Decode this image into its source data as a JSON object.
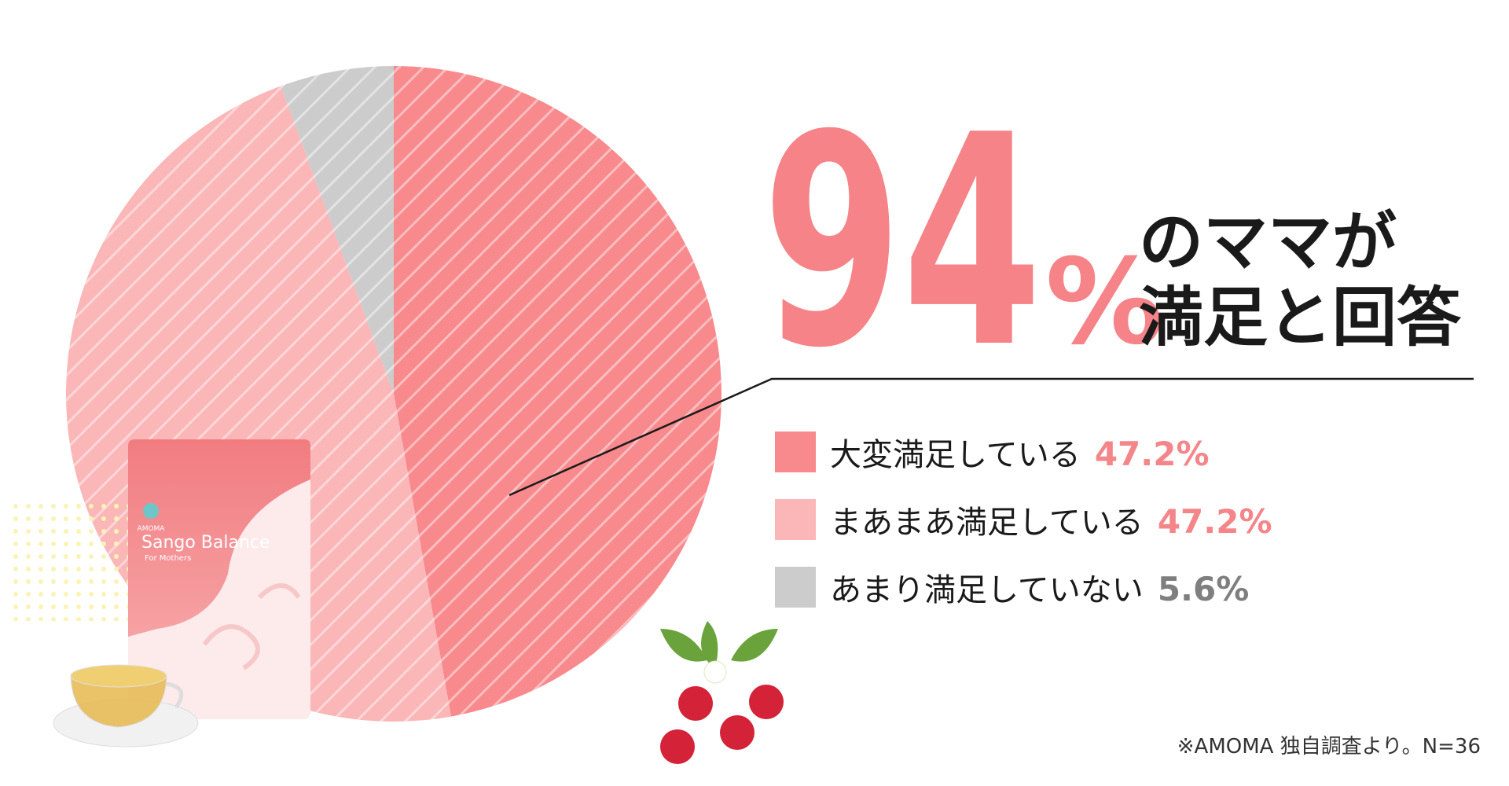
{
  "chart_data": {
    "type": "pie",
    "headline": {
      "number": "94",
      "unit": "%",
      "line1": "のママが",
      "line2": "満足と回答"
    },
    "categories": [
      "大変満足している",
      "まあまあ満足している",
      "あまり満足していない"
    ],
    "values": [
      47.2,
      47.2,
      5.6
    ],
    "value_labels": [
      "47.2%",
      "47.2%",
      "5.6%"
    ],
    "colors": [
      "#f8898c",
      "#fbb6b8",
      "#cccccc"
    ],
    "label_colors": [
      "#f4868a",
      "#f4868a",
      "#7f7f7f"
    ],
    "note": "※AMOMA 独自調査より。N=36",
    "product": {
      "brand": "AMOMA",
      "name": "Sango Balance",
      "tagline": "For Mothers"
    }
  }
}
